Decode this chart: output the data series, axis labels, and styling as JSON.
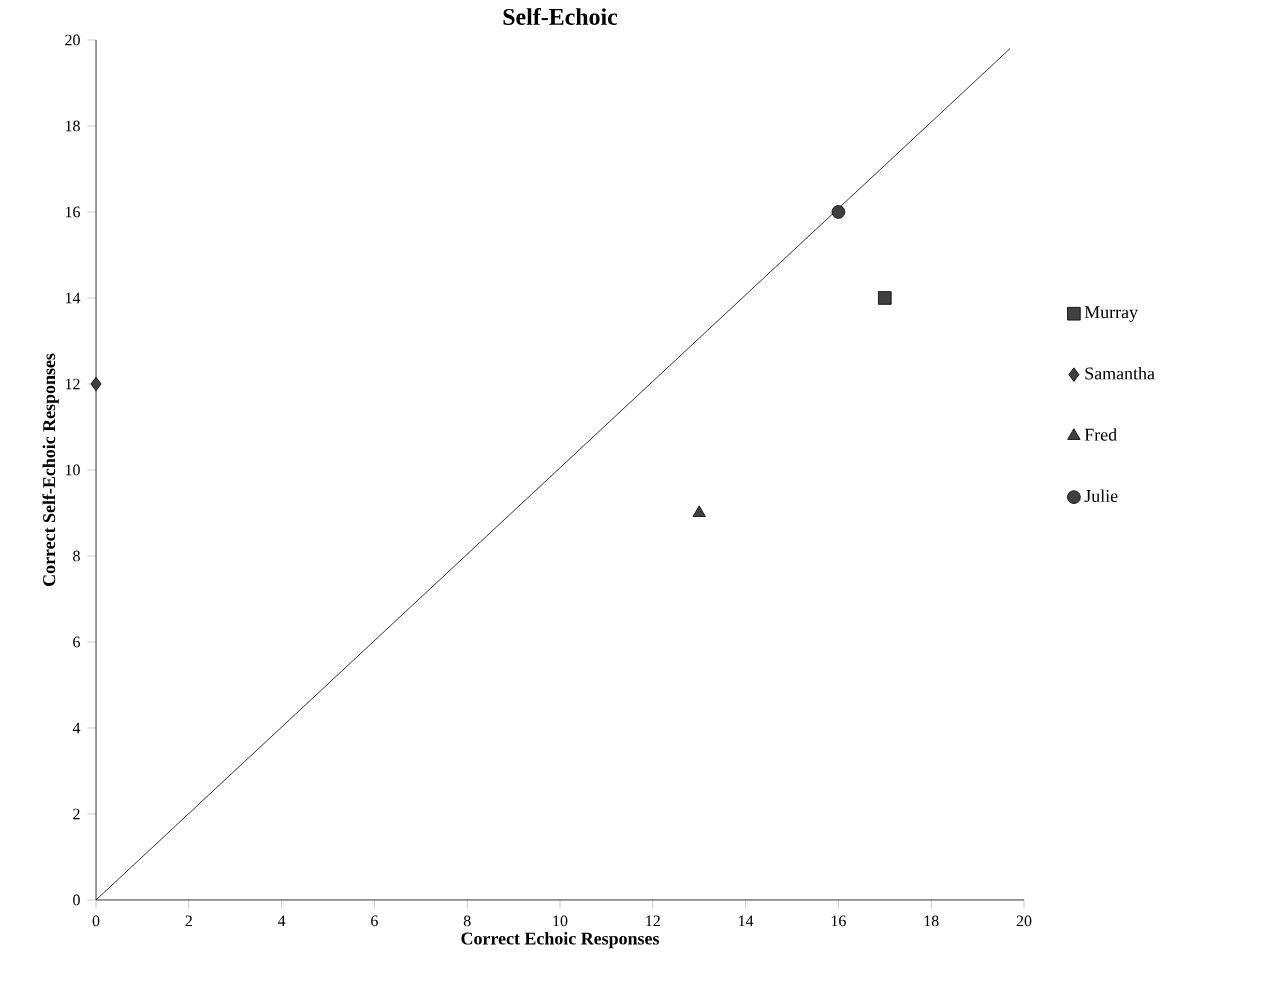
{
  "chart_data": {
    "type": "scatter",
    "title": "Self-Echoic",
    "xlabel": "Correct Echoic Responses",
    "ylabel": "Correct Self-Echoic Responses",
    "xlim": [
      0,
      20
    ],
    "ylim": [
      0,
      20
    ],
    "xticks": [
      0,
      2,
      4,
      6,
      8,
      10,
      12,
      14,
      16,
      18,
      20
    ],
    "yticks": [
      0,
      2,
      4,
      6,
      8,
      10,
      12,
      14,
      16,
      18,
      20
    ],
    "grid": false,
    "legend": "right",
    "series": [
      {
        "name": "Murray",
        "color": "#404040",
        "marker": "square",
        "x": [
          17
        ],
        "values": [
          14
        ]
      },
      {
        "name": "Samantha",
        "color": "#404040",
        "marker": "diamond",
        "x": [
          0
        ],
        "values": [
          12
        ]
      },
      {
        "name": "Fred",
        "color": "#404040",
        "marker": "triangle",
        "x": [
          13
        ],
        "values": [
          9
        ]
      },
      {
        "name": "Julie",
        "color": "#404040",
        "marker": "circle",
        "x": [
          16
        ],
        "values": [
          16
        ]
      },
      {
        "type": "line",
        "color": "#000000",
        "marker": "none",
        "x": [
          0,
          19.7
        ],
        "values": [
          0,
          19.8
        ]
      }
    ]
  }
}
